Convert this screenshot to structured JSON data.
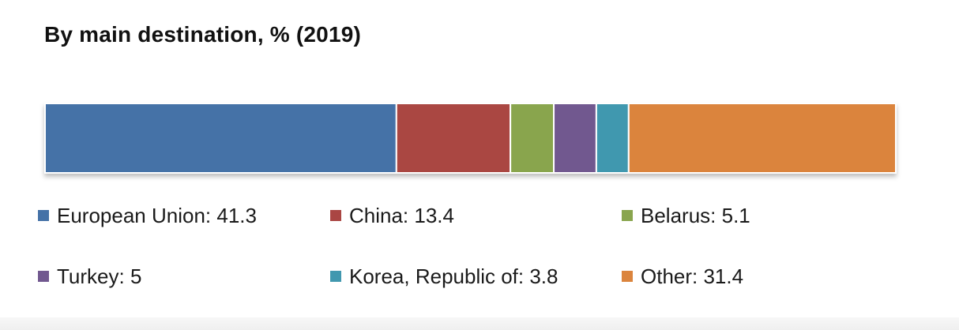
{
  "chart_data": {
    "type": "bar",
    "title": "By main destination, % (2019)",
    "orientation": "horizontal-stacked",
    "legend_position": "bottom",
    "categories": [
      "European Union",
      "China",
      "Belarus",
      "Turkey",
      "Korea, Republic of",
      "Other"
    ],
    "values": [
      41.3,
      13.4,
      5.1,
      5,
      3.8,
      31.4
    ],
    "colors": [
      "#4572a7",
      "#aa4643",
      "#89a54e",
      "#71588f",
      "#4198af",
      "#db843d"
    ],
    "legend_labels": [
      "European Union: 41.3",
      "China: 13.4",
      "Belarus: 5.1",
      "Turkey: 5",
      "Korea, Republic of: 3.8",
      "Other: 31.4"
    ],
    "unit": "%"
  }
}
